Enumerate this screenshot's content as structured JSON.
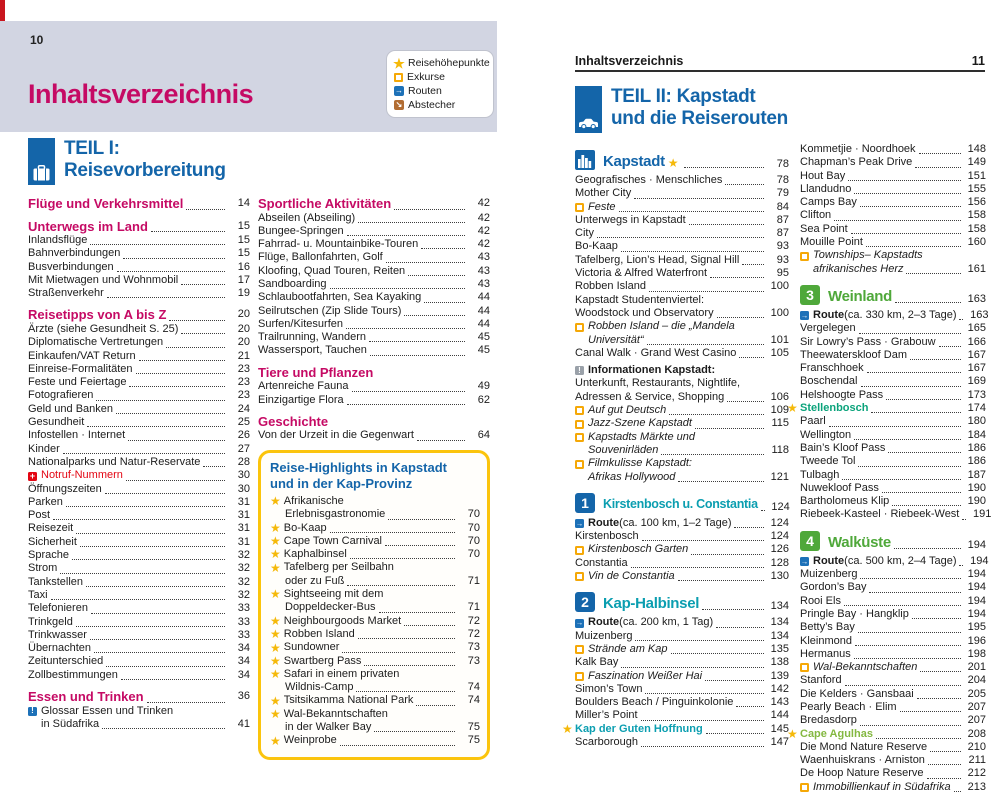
{
  "colors": {
    "magenta": "#c50a64",
    "blue": "#1465a9",
    "teal": "#0b9eb0",
    "green": "#4fa83a",
    "green_teal": "#0ba37b",
    "lime_green": "#84b841",
    "gold": "#f5b90a",
    "red": "#e30613",
    "band": "#d2d5e2",
    "route_blue": "#1d71b8",
    "side_trip_brown": "#b26d33",
    "info_gray": "#9aa1a9",
    "highlight_box_yellow": "#fbc40c"
  },
  "page_left": {
    "page_number": "10",
    "title": "Inhaltsverzeichnis",
    "legend": [
      {
        "icon": "highlights-star",
        "label": "Reisehöhepunkte"
      },
      {
        "icon": "excursion-square",
        "label": "Exkurse"
      },
      {
        "icon": "route-arrow",
        "label": "Routen"
      },
      {
        "icon": "side-trip-arrow",
        "label": "Abstecher"
      }
    ],
    "part": {
      "line1": "TEIL I:",
      "line2": "Reisevorbereitung"
    },
    "col1": [
      {
        "s": "h",
        "t": "Flüge und Verkehrsmittel",
        "p": "14"
      },
      {
        "s": "h",
        "t": "Unterwegs im Land",
        "p": "15"
      },
      {
        "s": "e",
        "t": "Inlandsflüge",
        "p": "15"
      },
      {
        "s": "e",
        "t": "Bahnverbindungen",
        "p": "15"
      },
      {
        "s": "e",
        "t": "Busverbindungen",
        "p": "16"
      },
      {
        "s": "e",
        "t": "Mit Mietwagen und Wohnmobil",
        "p": "17"
      },
      {
        "s": "e",
        "t": "Straßenverkehr",
        "p": "19"
      },
      {
        "s": "h",
        "t": "Reisetipps von A bis Z",
        "p": "20"
      },
      {
        "s": "e",
        "t": "Ärzte (siehe Gesundheit S. 25)",
        "p": "20"
      },
      {
        "s": "e",
        "t": "Diplomatische Vertretungen",
        "p": "20"
      },
      {
        "s": "e",
        "t": "Einkaufen/VAT Return",
        "p": "21"
      },
      {
        "s": "e",
        "t": "Einreise-Formalitäten",
        "p": "23"
      },
      {
        "s": "e",
        "t": "Feste und Feiertage",
        "p": "23"
      },
      {
        "s": "e",
        "t": "Fotografieren",
        "p": "23"
      },
      {
        "s": "e",
        "t": "Geld und Banken",
        "p": "24"
      },
      {
        "s": "e",
        "t": "Gesundheit",
        "p": "25"
      },
      {
        "s": "e",
        "t": "Infostellen · Internet",
        "p": "26"
      },
      {
        "s": "e",
        "t": "Kinder",
        "p": "27"
      },
      {
        "s": "e",
        "t": "Nationalparks und Natur-Reservate",
        "p": "28"
      },
      {
        "s": "cross",
        "t": "Notruf-Nummern",
        "p": "30"
      },
      {
        "s": "e",
        "t": "Öffnungszeiten",
        "p": "30"
      },
      {
        "s": "e",
        "t": "Parken",
        "p": "31"
      },
      {
        "s": "e",
        "t": "Post",
        "p": "31"
      },
      {
        "s": "e",
        "t": "Reisezeit",
        "p": "31"
      },
      {
        "s": "e",
        "t": "Sicherheit",
        "p": "31"
      },
      {
        "s": "e",
        "t": "Sprache",
        "p": "32"
      },
      {
        "s": "e",
        "t": "Strom",
        "p": "32"
      },
      {
        "s": "e",
        "t": "Tankstellen",
        "p": "32"
      },
      {
        "s": "e",
        "t": "Taxi",
        "p": "32"
      },
      {
        "s": "e",
        "t": "Telefonieren",
        "p": "33"
      },
      {
        "s": "e",
        "t": "Trinkgeld",
        "p": "33"
      },
      {
        "s": "e",
        "t": "Trinkwasser",
        "p": "33"
      },
      {
        "s": "e",
        "t": "Übernachten",
        "p": "34"
      },
      {
        "s": "e",
        "t": "Zeitunterschied",
        "p": "34"
      },
      {
        "s": "e",
        "t": "Zollbestimmungen",
        "p": "34"
      },
      {
        "s": "h",
        "t": "Essen und Trinken",
        "p": "36"
      },
      {
        "s": "info",
        "ic": "blue",
        "l": [
          "Glossar Essen und Trinken",
          "in Südafrika"
        ],
        "p": "41"
      }
    ],
    "col2": [
      {
        "s": "h",
        "t": "Sportliche Aktivitäten",
        "p": "42"
      },
      {
        "s": "e",
        "t": "Abseilen (Abseiling)",
        "p": "42"
      },
      {
        "s": "e",
        "t": "Bungee-Springen",
        "p": "42"
      },
      {
        "s": "e",
        "t": "Fahrrad- u. Mountainbike-Touren",
        "p": "42"
      },
      {
        "s": "e",
        "t": "Flüge, Ballonfahrten, Golf",
        "p": "43"
      },
      {
        "s": "e",
        "t": "Kloofing, Quad Touren, Reiten",
        "p": "43"
      },
      {
        "s": "e",
        "t": "Sandboarding",
        "p": "43"
      },
      {
        "s": "e",
        "t": "Schlaubootfahrten, Sea Kayaking",
        "p": "44"
      },
      {
        "s": "e",
        "t": "Seilrutschen (Zip Slide Tours)",
        "p": "44"
      },
      {
        "s": "e",
        "t": "Surfen/Kitesurfen",
        "p": "44"
      },
      {
        "s": "e",
        "t": "Trailrunning, Wandern",
        "p": "45"
      },
      {
        "s": "e",
        "t": "Wassersport, Tauchen",
        "p": "45"
      },
      {
        "s": "h",
        "t": "Tiere und Pflanzen"
      },
      {
        "s": "e",
        "t": "Artenreiche Fauna",
        "p": "49"
      },
      {
        "s": "e",
        "t": "Einzigartige Flora",
        "p": "62"
      },
      {
        "s": "h",
        "t": "Geschichte"
      },
      {
        "s": "e",
        "t": "Von der Urzeit in die Gegenwart",
        "p": "64"
      }
    ],
    "highlights": {
      "title_line1": "Reise-Highlights in Kapstadt",
      "title_line2": "und in der Kap-Provinz",
      "items": [
        {
          "l": [
            "Afrikanische",
            "Erlebnisgastronomie"
          ],
          "p": "70"
        },
        {
          "t": "Bo-Kaap",
          "p": "70"
        },
        {
          "t": "Cape Town Carnival",
          "p": "70"
        },
        {
          "t": "Kaphalbinsel",
          "p": "70"
        },
        {
          "l": [
            "Tafelberg per Seilbahn",
            "oder zu Fuß"
          ],
          "p": "71"
        },
        {
          "l": [
            "Sightseeing mit dem",
            "Doppeldecker-Bus"
          ],
          "p": "71"
        },
        {
          "t": "Neighbourgoods Market",
          "p": "72"
        },
        {
          "t": "Robben Island",
          "p": "72"
        },
        {
          "t": "Sundowner",
          "p": "73"
        },
        {
          "t": "Swartberg Pass",
          "p": "73"
        },
        {
          "l": [
            "Safari in einem privaten",
            "Wildnis-Camp"
          ],
          "p": "74"
        },
        {
          "t": "Tsitsikamma National Park",
          "p": "74"
        },
        {
          "l": [
            "Wal-Bekanntschaften",
            "in der Walker Bay"
          ],
          "p": "75"
        },
        {
          "t": "Weinprobe",
          "p": "75"
        }
      ]
    }
  },
  "page_right": {
    "header": "Inhaltsverzeichnis",
    "page_number": "11",
    "part": {
      "line1": "TEIL II: Kapstadt",
      "line2": "und die Reiserouten"
    },
    "col1": [
      {
        "s": "sec",
        "icon": "city",
        "t": "Kapstadt",
        "cls": "c-blue",
        "star": true,
        "p": "78"
      },
      {
        "s": "e",
        "t": "Geografisches · Menschliches",
        "p": "78"
      },
      {
        "s": "e",
        "t": "Mother City",
        "p": "79"
      },
      {
        "s": "ex",
        "t": "Feste",
        "p": "84"
      },
      {
        "s": "e",
        "t": "Unterwegs in Kapstadt",
        "p": "87"
      },
      {
        "s": "e",
        "t": "City",
        "p": "87"
      },
      {
        "s": "e",
        "t": "Bo-Kaap",
        "p": "93"
      },
      {
        "s": "e",
        "t": "Tafelberg, Lion’s Head, Signal Hill",
        "p": "93"
      },
      {
        "s": "e",
        "t": "Victoria & Alfred Waterfront",
        "p": "95"
      },
      {
        "s": "e",
        "t": "Robben Island",
        "p": "100"
      },
      {
        "s": "e",
        "l": [
          "Kapstadt Studentenviertel:",
          "Woodstock und Observatory"
        ],
        "p": "100"
      },
      {
        "s": "ex",
        "l": [
          "Robben Island – die „Mandela",
          "Universität“"
        ],
        "p": "101"
      },
      {
        "s": "e",
        "t": "Canal Walk · Grand West Casino",
        "p": "105"
      },
      {
        "s": "info",
        "ic": "gray",
        "b1": true,
        "mt": true,
        "ci": 0,
        "l": [
          "Informationen Kapstadt:",
          "Unterkunft, Restaurants, Nightlife,",
          "Adressen & Service, Shopping"
        ],
        "p": "106"
      },
      {
        "s": "ex",
        "t": "Auf gut Deutsch",
        "p": "109"
      },
      {
        "s": "ex",
        "t": "Jazz-Szene Kapstadt",
        "p": "115"
      },
      {
        "s": "ex",
        "l": [
          "Kapstadts Märkte und",
          "Souvenirläden"
        ],
        "p": "118"
      },
      {
        "s": "ex",
        "l": [
          "Filmkulisse Kapstadt:",
          "Afrikas Hollywood"
        ],
        "p": "121"
      },
      {
        "s": "sec",
        "num": "1",
        "box": "blue",
        "t": "Kirstenbosch u. Constantia",
        "cls": "c-teal",
        "long": true,
        "p": "124"
      },
      {
        "s": "route",
        "tb": "Route",
        "t": " (ca. 100 km, 1–2 Tage)",
        "p": "124"
      },
      {
        "s": "e",
        "t": "Kirstenbosch",
        "p": "124"
      },
      {
        "s": "ex",
        "t": "Kirstenbosch Garten",
        "p": "126"
      },
      {
        "s": "e",
        "t": "Constantia",
        "p": "128"
      },
      {
        "s": "ex",
        "t": "Vin de Constantia",
        "p": "130"
      },
      {
        "s": "sec",
        "num": "2",
        "box": "blue",
        "t": "Kap-Halbinsel",
        "cls": "c-teal",
        "p": "134"
      },
      {
        "s": "route",
        "tb": "Route",
        "t": " (ca. 200 km, 1 Tag)",
        "p": "134"
      },
      {
        "s": "e",
        "t": "Muizenberg",
        "p": "134"
      },
      {
        "s": "ex",
        "t": "Strände am Kap",
        "p": "135"
      },
      {
        "s": "e",
        "t": "Kalk Bay",
        "p": "138"
      },
      {
        "s": "ex",
        "t": "Faszination Weißer Hai",
        "p": "139"
      },
      {
        "s": "e",
        "t": "Simon’s Town",
        "p": "142"
      },
      {
        "s": "e",
        "t": "Boulders Beach / Pinguinkolonie",
        "p": "143"
      },
      {
        "s": "e",
        "t": "Miller’s Point",
        "p": "144"
      },
      {
        "s": "star",
        "t": "Kap der Guten Hoffnung",
        "cls": "c-teal",
        "p": "145"
      },
      {
        "s": "e",
        "t": "Scarborough",
        "p": "147"
      }
    ],
    "col2": [
      {
        "s": "e",
        "t": "Kommetjie · Noordhoek",
        "p": "148"
      },
      {
        "s": "e",
        "t": "Chapman’s Peak Drive",
        "p": "149"
      },
      {
        "s": "e",
        "t": "Hout Bay",
        "p": "151"
      },
      {
        "s": "e",
        "t": "Llandudno",
        "p": "155"
      },
      {
        "s": "e",
        "t": "Camps Bay",
        "p": "156"
      },
      {
        "s": "e",
        "t": "Clifton",
        "p": "158"
      },
      {
        "s": "e",
        "t": "Sea Point",
        "p": "158"
      },
      {
        "s": "e",
        "t": "Mouille Point",
        "p": "160"
      },
      {
        "s": "ex",
        "l": [
          "Townships– Kapstadts",
          "afrikanisches Herz"
        ],
        "p": "161"
      },
      {
        "s": "sec",
        "num": "3",
        "box": "green",
        "t": "Weinland",
        "cls": "c-green",
        "p": "163"
      },
      {
        "s": "route",
        "tb": "Route",
        "t": " (ca. 330 km, 2–3 Tage)",
        "p": "163"
      },
      {
        "s": "e",
        "t": "Vergelegen",
        "p": "165"
      },
      {
        "s": "e",
        "t": "Sir Lowry’s Pass · Grabouw",
        "p": "166"
      },
      {
        "s": "e",
        "t": "Theewaterskloof Dam",
        "p": "167"
      },
      {
        "s": "e",
        "t": "Franschhoek",
        "p": "167"
      },
      {
        "s": "e",
        "t": "Boschendal",
        "p": "169"
      },
      {
        "s": "e",
        "t": "Helshoogte Pass",
        "p": "173"
      },
      {
        "s": "star",
        "t": "Stellenbosch",
        "cls": "c-greenteal",
        "p": "174"
      },
      {
        "s": "e",
        "t": "Paarl",
        "p": "180"
      },
      {
        "s": "e",
        "t": "Wellington",
        "p": "184"
      },
      {
        "s": "e",
        "t": "Bain’s Kloof Pass",
        "p": "186"
      },
      {
        "s": "e",
        "t": "Tweede Tol",
        "p": "186"
      },
      {
        "s": "e",
        "t": "Tulbagh",
        "p": "187"
      },
      {
        "s": "e",
        "t": "Nuwekloof Pass",
        "p": "190"
      },
      {
        "s": "e",
        "t": "Bartholomeus Klip",
        "p": "190"
      },
      {
        "s": "e",
        "t": "Riebeek-Kasteel · Riebeek-West",
        "p": "191"
      },
      {
        "s": "sec",
        "num": "4",
        "box": "green",
        "t": "Walküste",
        "cls": "c-green",
        "p": "194"
      },
      {
        "s": "route",
        "tb": "Route",
        "t": " (ca. 500 km, 2–4 Tage)",
        "p": "194"
      },
      {
        "s": "e",
        "t": "Muizenberg",
        "p": "194"
      },
      {
        "s": "e",
        "t": "Gordon’s Bay",
        "p": "194"
      },
      {
        "s": "e",
        "t": "Rooi Els",
        "p": "194"
      },
      {
        "s": "e",
        "t": "Pringle Bay · Hangklip",
        "p": "194"
      },
      {
        "s": "e",
        "t": "Betty’s Bay",
        "p": "195"
      },
      {
        "s": "e",
        "t": "Kleinmond",
        "p": "196"
      },
      {
        "s": "e",
        "t": "Hermanus",
        "p": "198"
      },
      {
        "s": "ex",
        "t": "Wal-Bekanntschaften",
        "p": "201"
      },
      {
        "s": "e",
        "t": "Stanford",
        "p": "204"
      },
      {
        "s": "e",
        "t": "Die Kelders · Gansbaai",
        "p": "205"
      },
      {
        "s": "e",
        "t": "Pearly Beach · Elim",
        "p": "207"
      },
      {
        "s": "e",
        "t": "Bredasdorp",
        "p": "207"
      },
      {
        "s": "star",
        "t": "Cape Agulhas",
        "cls": "c-lime",
        "p": "208"
      },
      {
        "s": "e",
        "t": "Die Mond Nature Reserve",
        "p": "210"
      },
      {
        "s": "e",
        "t": "Waenhuiskrans · Arniston",
        "p": "211"
      },
      {
        "s": "e",
        "t": "De Hoop Nature Reserve",
        "p": "212"
      },
      {
        "s": "ex",
        "t": "Immobillienkauf in Südafrika",
        "p": "213"
      }
    ]
  }
}
